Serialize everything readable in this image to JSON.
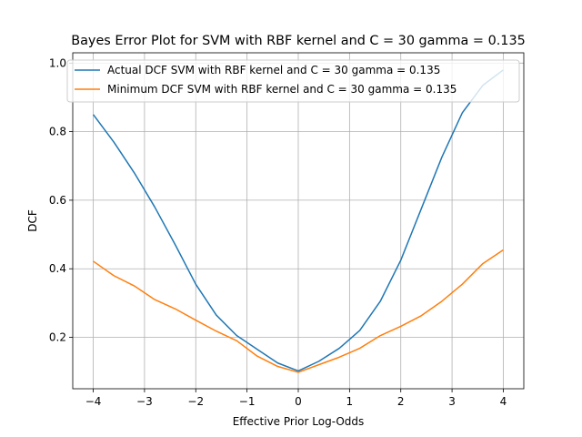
{
  "chart_data": {
    "type": "line",
    "title": "Bayes Error Plot for SVM with RBF kernel and C = 30 gamma = 0.135",
    "xlabel": "Effective Prior Log-Odds",
    "ylabel": "DCF",
    "xlim": [
      -4.4,
      4.4
    ],
    "ylim": [
      0.05,
      1.03
    ],
    "xticks": [
      -4,
      -3,
      -2,
      -1,
      0,
      1,
      2,
      3,
      4
    ],
    "xtick_labels": [
      "−4",
      "−3",
      "−2",
      "−1",
      "0",
      "1",
      "2",
      "3",
      "4"
    ],
    "yticks": [
      0.2,
      0.4,
      0.6,
      0.8,
      1.0
    ],
    "ytick_labels": [
      "0.2",
      "0.4",
      "0.6",
      "0.8",
      "1.0"
    ],
    "grid": true,
    "legend_position": "top-right",
    "x": [
      -4.0,
      -3.6,
      -3.2,
      -2.8,
      -2.4,
      -2.0,
      -1.6,
      -1.2,
      -0.8,
      -0.4,
      0.0,
      0.4,
      0.8,
      1.2,
      1.6,
      2.0,
      2.4,
      2.8,
      3.2,
      3.6,
      4.0
    ],
    "series": [
      {
        "name": "Actual DCF SVM with RBF kernel and C = 30 gamma = 0.135",
        "color": "#1f77b4",
        "values": [
          0.85,
          0.77,
          0.68,
          0.58,
          0.47,
          0.355,
          0.265,
          0.205,
          0.165,
          0.125,
          0.102,
          0.13,
          0.168,
          0.22,
          0.305,
          0.425,
          0.575,
          0.725,
          0.855,
          0.935,
          0.98
        ]
      },
      {
        "name": "Minimum DCF SVM with RBF kernel and C = 30 gamma = 0.135",
        "color": "#ff7f0e",
        "values": [
          0.422,
          0.38,
          0.35,
          0.31,
          0.283,
          0.25,
          0.218,
          0.19,
          0.145,
          0.115,
          0.098,
          0.12,
          0.142,
          0.168,
          0.205,
          0.232,
          0.263,
          0.305,
          0.355,
          0.415,
          0.455
        ]
      }
    ]
  }
}
